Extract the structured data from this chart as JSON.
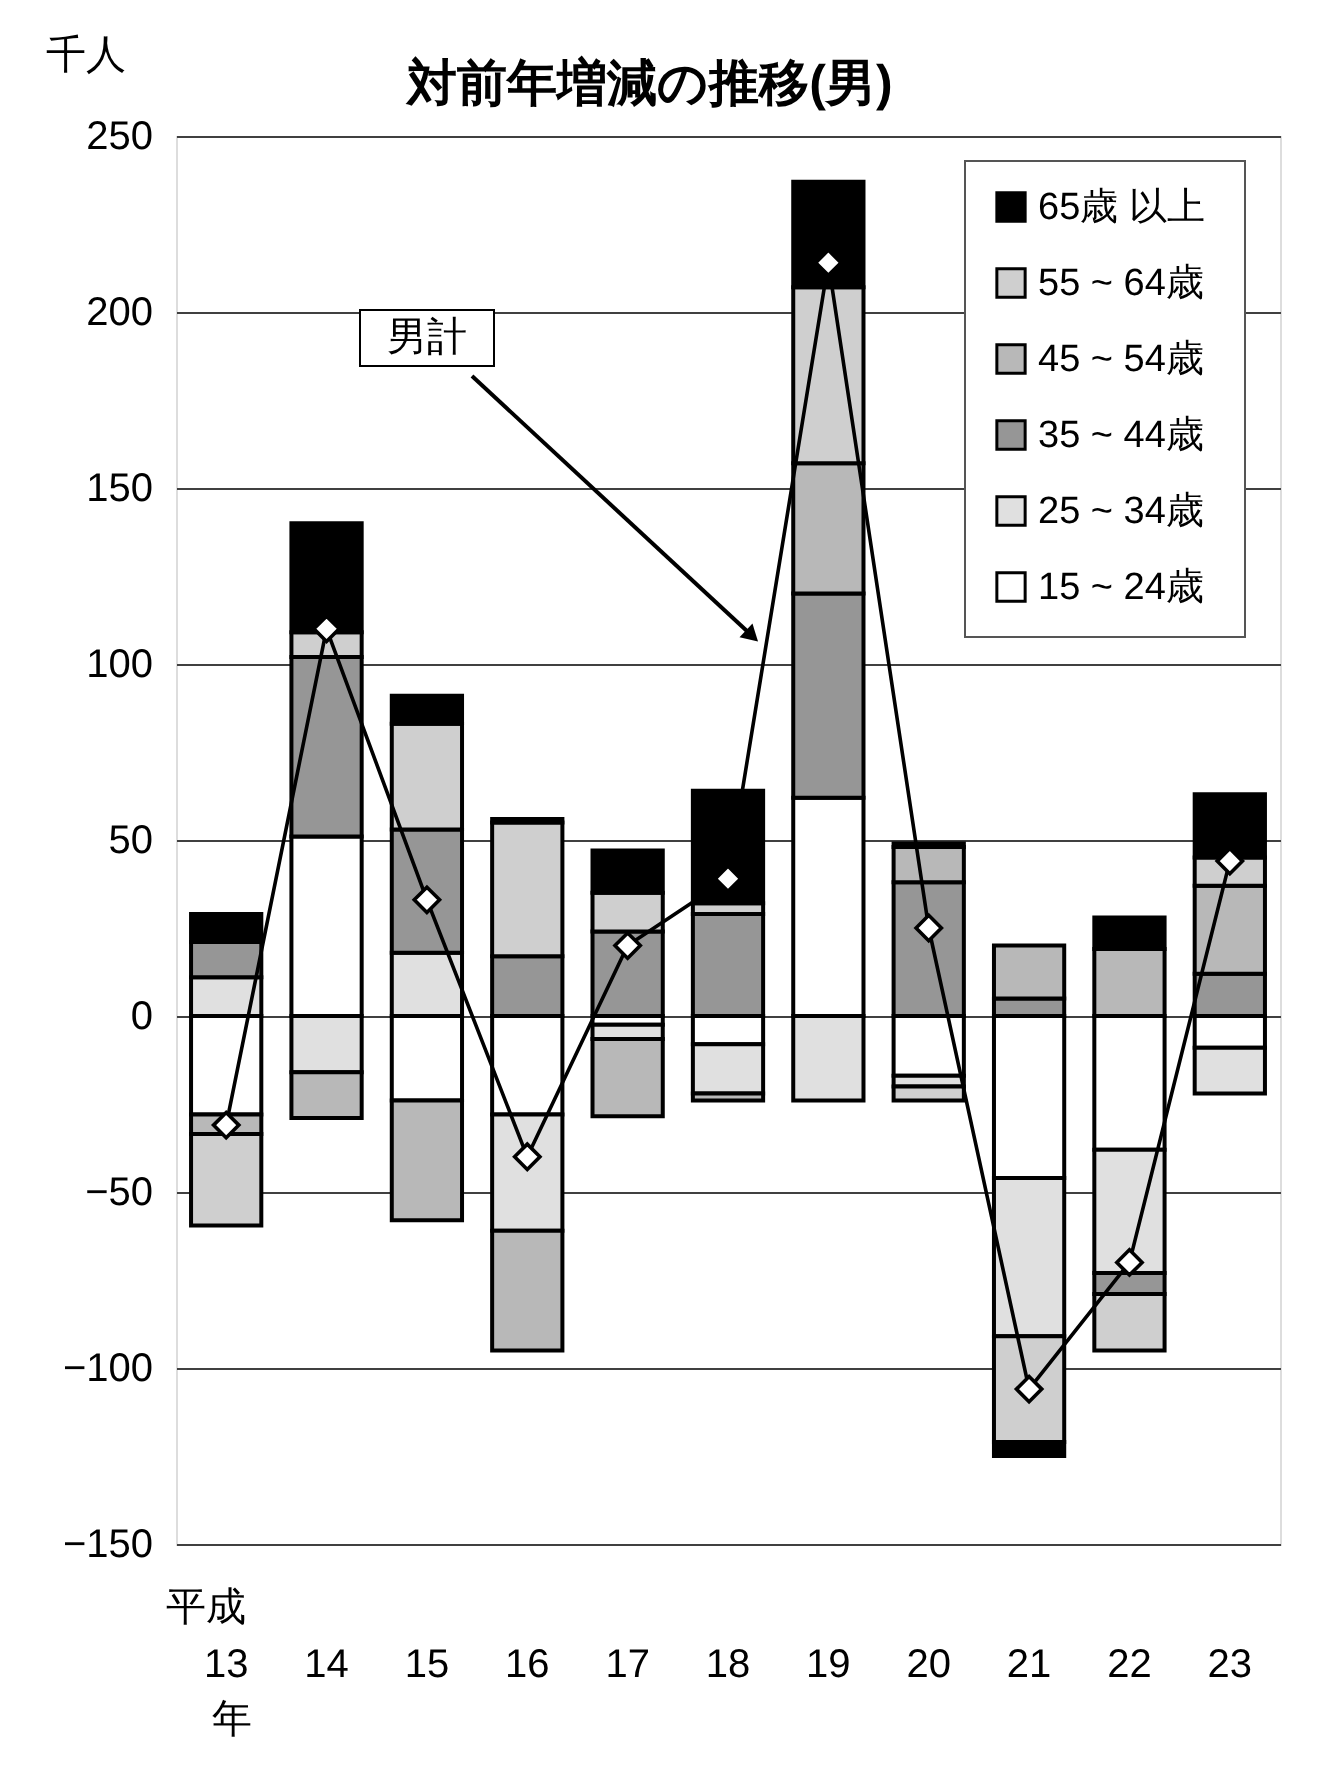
{
  "chart_data": {
    "type": "bar",
    "stacked": true,
    "title": "対前年増減の推移(男)",
    "ylabel": "千人",
    "xlabel": "平成",
    "annotations": [
      "年"
    ],
    "categories": [
      "13",
      "14",
      "15",
      "16",
      "17",
      "18",
      "19",
      "20",
      "21",
      "22",
      "23"
    ],
    "series": [
      {
        "name": "15 ~  24歳",
        "color": "#ffffff",
        "values": [
          -28,
          51,
          -24,
          -28,
          -2.5,
          -8,
          62,
          -17,
          -46,
          -38,
          -9
        ]
      },
      {
        "name": "25 ~  34歳",
        "color": "#e0e0e0",
        "values": [
          11,
          -16,
          18,
          -33,
          -4,
          -14,
          -24,
          -3,
          -45,
          -35,
          -13
        ]
      },
      {
        "name": "35 ~  44歳",
        "color": "#969696",
        "values": [
          10,
          51,
          35,
          17,
          24,
          29,
          58,
          38,
          5,
          -6,
          12
        ]
      },
      {
        "name": "45 ~  54歳",
        "color": "#b8b8b8",
        "values": [
          -5.5,
          -13,
          -34,
          -34,
          -22,
          -2,
          37,
          10,
          15,
          19,
          25
        ]
      },
      {
        "name": "55 ~  64歳",
        "color": "#cfcfcf",
        "values": [
          -26,
          7,
          30,
          38,
          11,
          3,
          50,
          -4,
          -30,
          -16,
          8
        ]
      },
      {
        "name": "65歳 以上",
        "color": "#000000",
        "values": [
          8,
          31,
          8,
          1,
          12,
          32,
          30,
          1,
          -4,
          9,
          18
        ]
      },
      {
        "name": "男計",
        "type": "line",
        "color": "#000000",
        "marker": "diamond",
        "values": [
          -31,
          110,
          33,
          -40,
          20,
          39,
          214,
          25,
          -106,
          -70,
          44
        ]
      }
    ],
    "ylim": [
      -150,
      250
    ],
    "yticks": [
      -150,
      -100,
      -50,
      0,
      50,
      100,
      150,
      200,
      250
    ],
    "grid": "y",
    "legend": "top right"
  }
}
